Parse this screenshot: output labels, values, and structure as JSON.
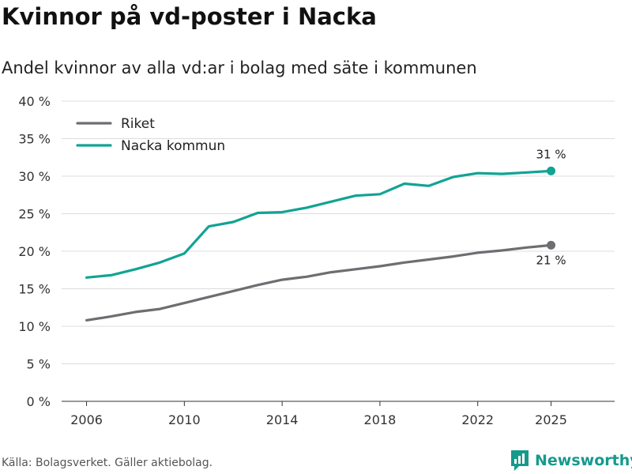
{
  "title": "Kvinnor på vd-poster i Nacka",
  "subtitle": "Andel kvinnor av alla vd:ar i bolag med säte i kommunen",
  "source": "Källa: Bolagsverket. Gäller aktiebolag.",
  "brand": "Newsworthy",
  "colors": {
    "riket": "#6e6d72",
    "nacka": "#11a394",
    "brand": "#159a8c"
  },
  "chart_data": {
    "type": "line",
    "x": [
      2006,
      2007,
      2008,
      2009,
      2010,
      2011,
      2012,
      2013,
      2014,
      2015,
      2016,
      2017,
      2018,
      2019,
      2020,
      2021,
      2022,
      2023,
      2024,
      2025
    ],
    "series": [
      {
        "name": "Riket",
        "values": [
          10.8,
          11.3,
          11.9,
          12.3,
          13.1,
          13.9,
          14.7,
          15.5,
          16.2,
          16.6,
          17.2,
          17.6,
          18.0,
          18.5,
          18.9,
          19.3,
          19.8,
          20.1,
          20.5,
          20.8
        ]
      },
      {
        "name": "Nacka kommun",
        "values": [
          16.5,
          16.8,
          17.6,
          18.5,
          19.7,
          23.3,
          23.9,
          25.1,
          25.2,
          25.8,
          26.6,
          27.4,
          27.6,
          29.0,
          28.7,
          29.9,
          30.4,
          30.3,
          30.5,
          30.7
        ]
      }
    ],
    "xticks": [
      "2006",
      "2010",
      "2014",
      "2018",
      "2022",
      "2025"
    ],
    "yticks": [
      "0 %",
      "5 %",
      "10 %",
      "15 %",
      "20 %",
      "25 %",
      "30 %",
      "35 %",
      "40 %"
    ],
    "ylim": [
      0,
      40
    ],
    "xlim": [
      2005,
      2028
    ],
    "end_labels": {
      "Riket": "21 %",
      "Nacka kommun": "31 %"
    },
    "grid": true,
    "legend_position": "top-left"
  }
}
